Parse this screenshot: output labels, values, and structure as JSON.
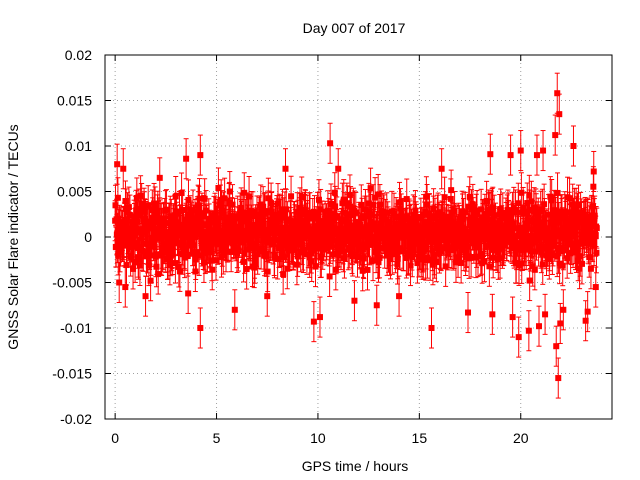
{
  "chart_data": {
    "type": "scatter",
    "title": "Day 007 of 2017",
    "xlabel": "GPS time / hours",
    "ylabel": "GNSS Solar Flare indicator / TECUs",
    "xlim": [
      -0.5,
      24.5
    ],
    "ylim": [
      -0.02,
      0.02
    ],
    "x_ticks": [
      0,
      5,
      10,
      15,
      20
    ],
    "x_tick_labels": [
      "0",
      "5",
      "10",
      "15",
      "20"
    ],
    "y_ticks": [
      -0.02,
      -0.015,
      -0.01,
      -0.005,
      0,
      0.005,
      0.01,
      0.015,
      0.02
    ],
    "y_tick_labels": [
      "-0.02",
      "-0.015",
      "-0.01",
      "-0.005",
      "0",
      "0.005",
      "0.01",
      "0.015",
      "0.02"
    ],
    "grid": true,
    "marker": "square",
    "error_bars": true,
    "colors": {
      "series": "#ff0000",
      "grid": "#a0a0a0",
      "axis": "#000000"
    },
    "series": [
      {
        "x_range": [
          0,
          23.75
        ],
        "band": [
          -0.005,
          0.006
        ],
        "error_half_width": 0.0022,
        "outliers": [
          {
            "x": 0.1,
            "y": 0.008
          },
          {
            "x": 0.4,
            "y": 0.0075
          },
          {
            "x": 0.2,
            "y": -0.005
          },
          {
            "x": 0.5,
            "y": -0.0055
          },
          {
            "x": 1.5,
            "y": -0.0065
          },
          {
            "x": 2.2,
            "y": 0.0065
          },
          {
            "x": 3.5,
            "y": 0.0086
          },
          {
            "x": 3.6,
            "y": -0.0062
          },
          {
            "x": 4.2,
            "y": 0.009
          },
          {
            "x": 4.2,
            "y": -0.01
          },
          {
            "x": 5.9,
            "y": -0.008
          },
          {
            "x": 7.5,
            "y": -0.0065
          },
          {
            "x": 8.4,
            "y": 0.0075
          },
          {
            "x": 9.8,
            "y": -0.0093
          },
          {
            "x": 10.1,
            "y": -0.0088
          },
          {
            "x": 10.6,
            "y": 0.0103
          },
          {
            "x": 11.0,
            "y": 0.0075
          },
          {
            "x": 11.8,
            "y": -0.007
          },
          {
            "x": 12.9,
            "y": -0.0075
          },
          {
            "x": 14.0,
            "y": -0.0065
          },
          {
            "x": 15.6,
            "y": -0.01
          },
          {
            "x": 16.1,
            "y": 0.0075
          },
          {
            "x": 17.4,
            "y": -0.0083
          },
          {
            "x": 18.5,
            "y": 0.0091
          },
          {
            "x": 18.6,
            "y": -0.0085
          },
          {
            "x": 19.5,
            "y": 0.009
          },
          {
            "x": 19.6,
            "y": -0.0088
          },
          {
            "x": 19.9,
            "y": -0.011
          },
          {
            "x": 20.0,
            "y": 0.0095
          },
          {
            "x": 20.4,
            "y": -0.0103
          },
          {
            "x": 20.8,
            "y": 0.009
          },
          {
            "x": 20.9,
            "y": -0.0098
          },
          {
            "x": 21.1,
            "y": 0.0095
          },
          {
            "x": 21.2,
            "y": -0.0085
          },
          {
            "x": 21.7,
            "y": 0.0112
          },
          {
            "x": 21.8,
            "y": 0.0158
          },
          {
            "x": 21.9,
            "y": 0.0135
          },
          {
            "x": 21.75,
            "y": -0.012
          },
          {
            "x": 21.85,
            "y": -0.0155
          },
          {
            "x": 21.95,
            "y": -0.0095
          },
          {
            "x": 22.1,
            "y": -0.008
          },
          {
            "x": 22.6,
            "y": 0.01
          },
          {
            "x": 23.2,
            "y": -0.0092
          },
          {
            "x": 23.3,
            "y": -0.0082
          },
          {
            "x": 23.6,
            "y": 0.0072
          },
          {
            "x": 23.7,
            "y": -0.0055
          }
        ]
      }
    ]
  }
}
